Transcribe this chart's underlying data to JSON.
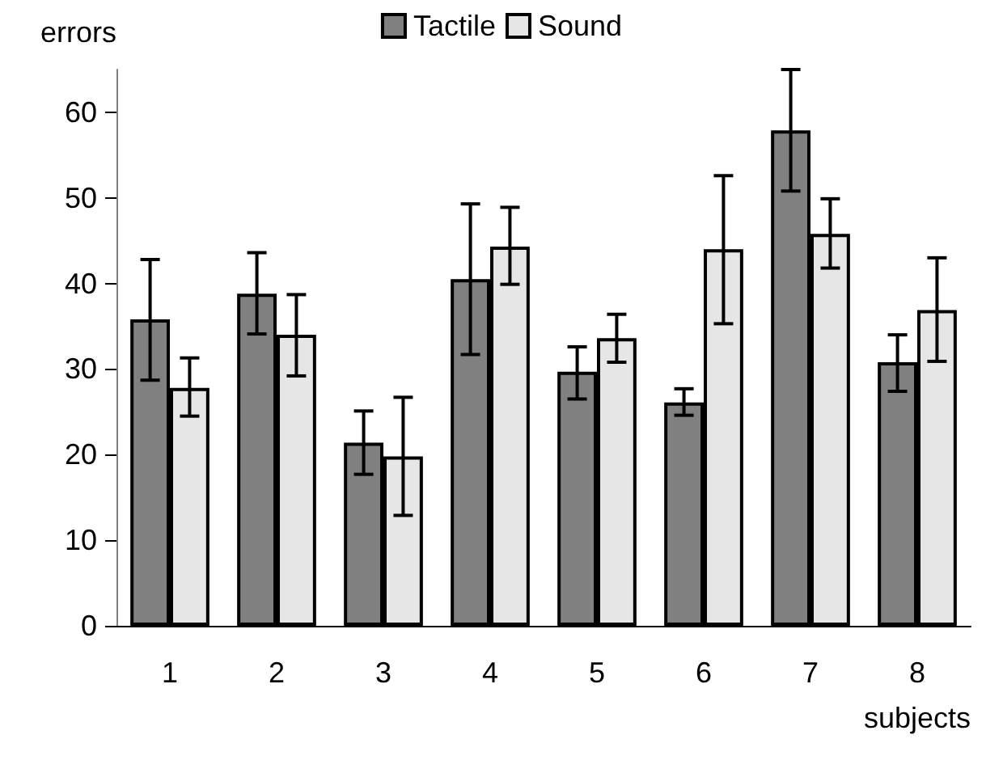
{
  "chart_data": {
    "type": "bar",
    "xlabel": "subjects",
    "ylabel": "errors",
    "categories": [
      "1",
      "2",
      "3",
      "4",
      "5",
      "6",
      "7",
      "8"
    ],
    "series": [
      {
        "name": "Tactile",
        "color": "#808080",
        "values": [
          35.8,
          38.8,
          21.4,
          40.5,
          29.7,
          26.1,
          57.9,
          30.8
        ],
        "errors": [
          [
            28.7,
            42.8
          ],
          [
            34.1,
            43.6
          ],
          [
            17.7,
            25.1
          ],
          [
            31.7,
            49.3
          ],
          [
            26.5,
            32.6
          ],
          [
            24.6,
            27.7
          ],
          [
            50.8,
            65.0
          ],
          [
            27.4,
            34.0
          ]
        ]
      },
      {
        "name": "Sound",
        "color": "#e6e6e6",
        "values": [
          27.8,
          34.0,
          19.8,
          44.3,
          33.6,
          44.0,
          45.8,
          36.9
        ],
        "errors": [
          [
            24.5,
            31.3
          ],
          [
            29.2,
            38.7
          ],
          [
            12.9,
            26.7
          ],
          [
            39.9,
            48.9
          ],
          [
            30.8,
            36.4
          ],
          [
            35.3,
            52.6
          ],
          [
            41.8,
            49.9
          ],
          [
            30.9,
            43.0
          ]
        ]
      }
    ],
    "ylim": [
      0,
      65
    ],
    "yticks": [
      0,
      10,
      20,
      30,
      40,
      50,
      60
    ],
    "grid": false,
    "legend": "top"
  }
}
